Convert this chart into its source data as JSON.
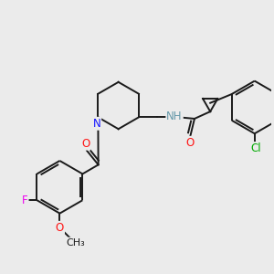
{
  "background_color": "#ebebeb",
  "bond_color": "#1a1a1a",
  "bond_width": 1.4,
  "atom_colors": {
    "N": "#1414ff",
    "O": "#ff1414",
    "F": "#ee00ee",
    "Cl": "#00aa00",
    "H": "#6699aa",
    "C": "#1a1a1a"
  },
  "font_size": 8.5
}
